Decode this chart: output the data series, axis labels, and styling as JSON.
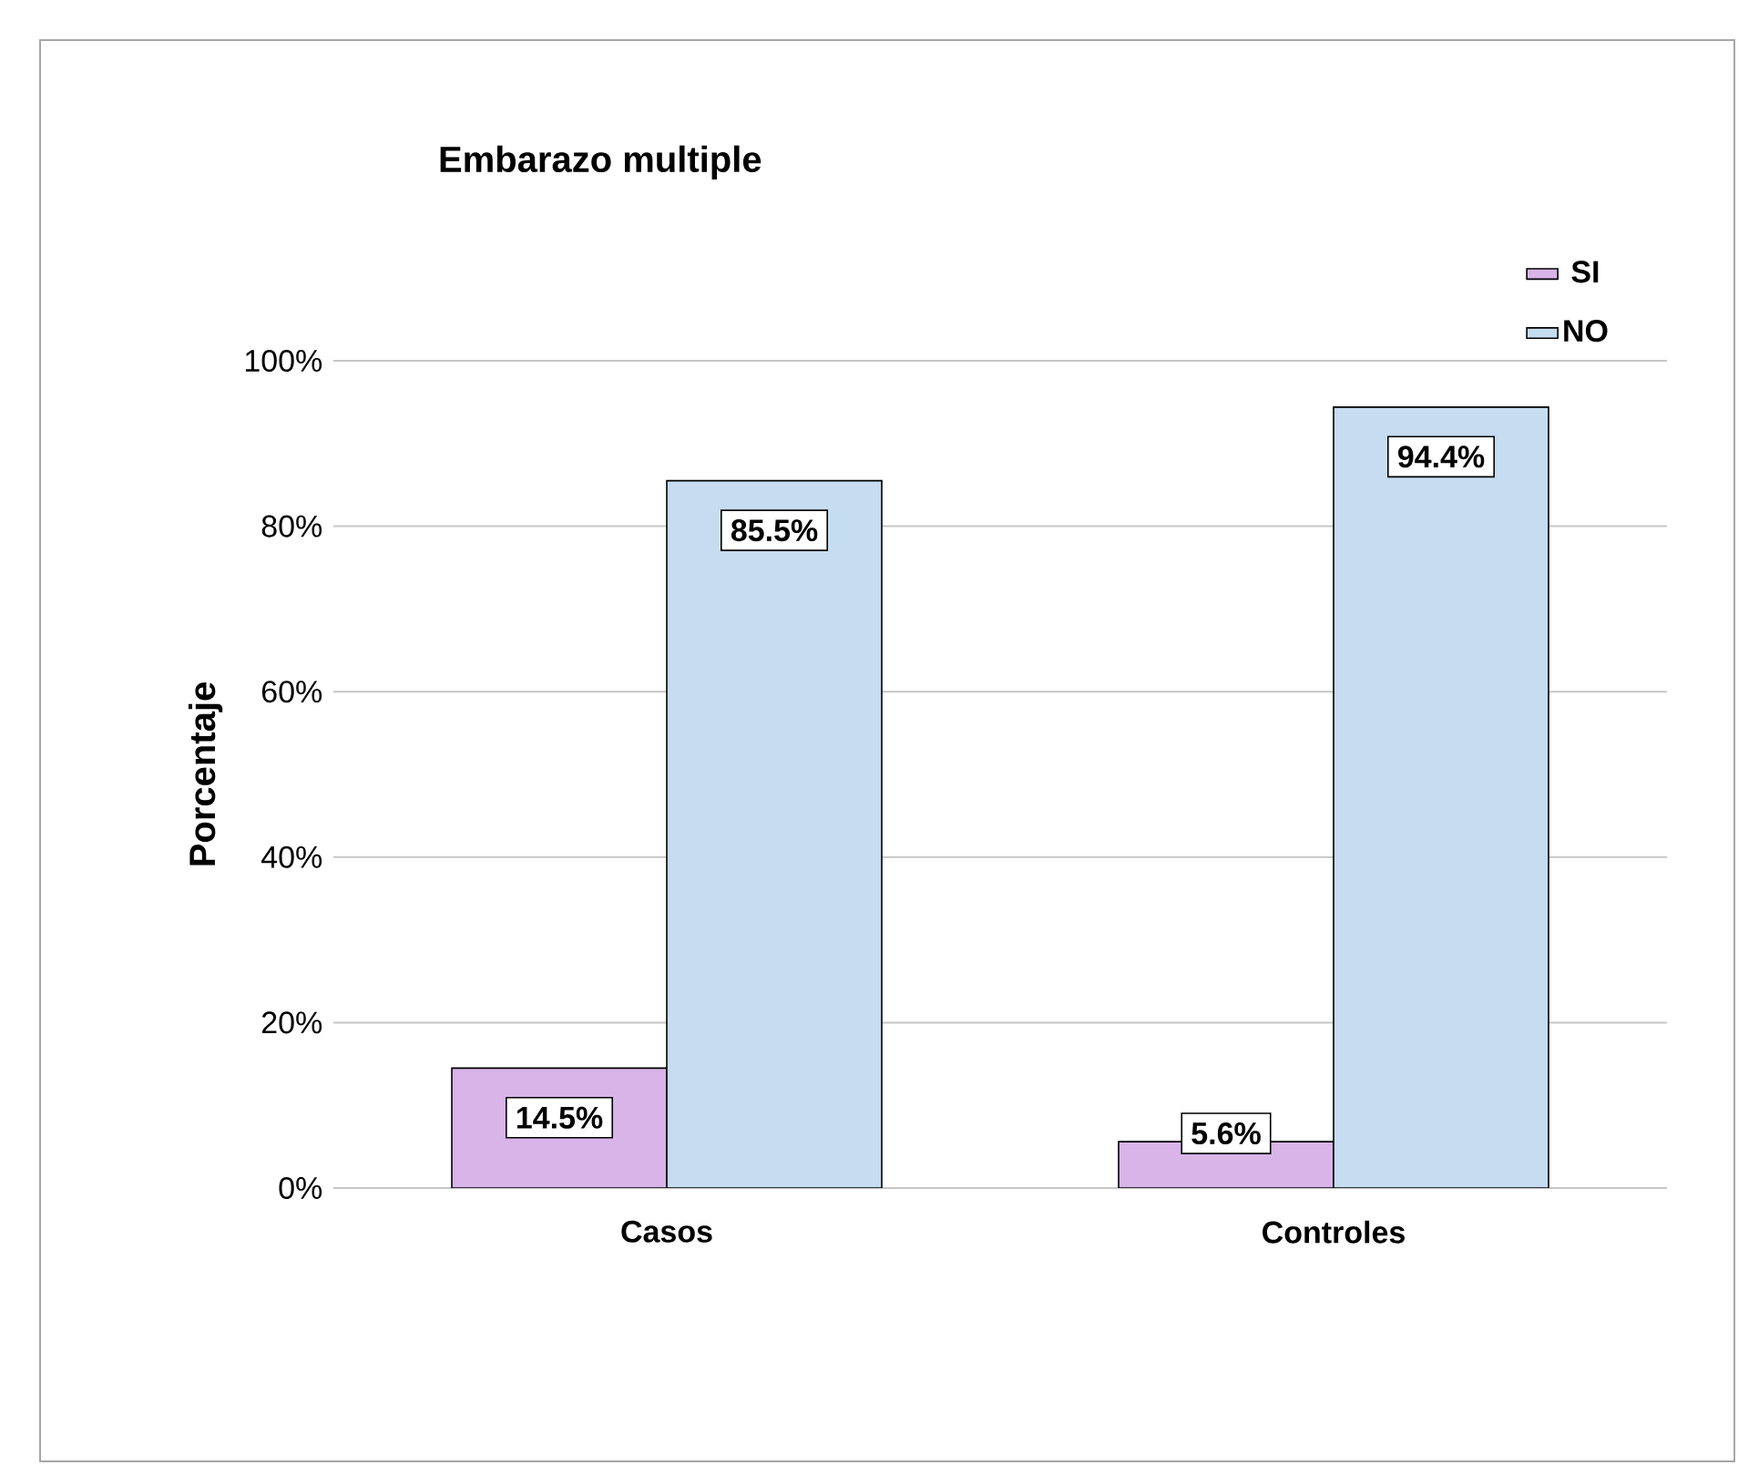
{
  "chart_data": {
    "type": "bar",
    "title": "Embarazo multiple",
    "ylabel": "Porcentaje",
    "categories": [
      "Casos",
      "Controles"
    ],
    "series": [
      {
        "name": "SI",
        "color": "#d8b4e8",
        "values": [
          14.5,
          5.6
        ],
        "value_labels": [
          "14.5%",
          "5.6%"
        ]
      },
      {
        "name": "NO",
        "color": "#c6dcf0",
        "values": [
          85.5,
          94.4
        ],
        "value_labels": [
          "85.5%",
          "94.4%"
        ]
      }
    ],
    "ylim": [
      0,
      100
    ],
    "yticks": [
      {
        "value": 0,
        "label": "0%"
      },
      {
        "value": 20,
        "label": "20%"
      },
      {
        "value": 40,
        "label": "40%"
      },
      {
        "value": 60,
        "label": "60%"
      },
      {
        "value": 80,
        "label": "80%"
      },
      {
        "value": 100,
        "label": "100%"
      }
    ],
    "grid": "y",
    "legend": "top right"
  }
}
